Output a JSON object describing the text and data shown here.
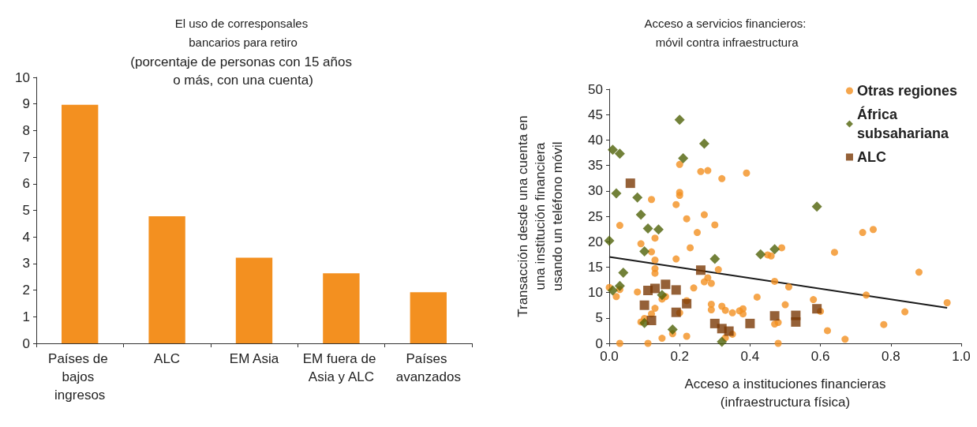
{
  "chart_data": [
    {
      "type": "bar",
      "title": "El uso de corresponsales bancarios para retiro",
      "subtitle": "(porcentaje de personas con 15 años o más, con una cuenta)",
      "categories": [
        "Países de bajos ingresos",
        "ALC",
        "EM Asia",
        "EM fuera de Asia y ALC",
        "Países avanzados"
      ],
      "values": [
        8.97,
        4.78,
        3.22,
        2.63,
        1.92
      ],
      "color": "#f39020",
      "ylim": [
        0,
        10
      ],
      "yticks": [
        0,
        1,
        2,
        3,
        4,
        5,
        6,
        7,
        8,
        9,
        10
      ],
      "grid": false
    },
    {
      "type": "scatter",
      "title": "Acceso a servicios financieros: móvil contra infraestructura",
      "xlabel": "Acceso a instituciones financieras (infraestructura física)",
      "ylabel": "Transacción desde una cuenta en una institución financiera usando un teléfono móvil",
      "xlim": [
        0,
        1
      ],
      "xticks": [
        {
          "value": 0,
          "label": "0.0"
        },
        {
          "value": 0.2,
          "label": "0.2"
        },
        {
          "value": 0.4,
          "label": "0.4"
        },
        {
          "value": 0.6,
          "label": "0.6"
        },
        {
          "value": 0.8,
          "label": "0.8"
        },
        {
          "value": 1,
          "label": "1.0"
        }
      ],
      "ylim": [
        0,
        50
      ],
      "yticks": [
        0,
        5,
        10,
        15,
        20,
        25,
        30,
        35,
        40,
        45,
        50
      ],
      "grid": false,
      "legend": "top right",
      "series": [
        {
          "name": "Otras regiones",
          "color": "#f39020",
          "marker": "circle",
          "x": [
            0.03,
            0.11,
            0.2,
            0.2,
            0.2,
            0.19,
            0.12,
            0.03,
            0.22,
            0.25,
            0.09,
            0.13,
            0.12,
            0.23,
            0.13,
            0.19,
            0.13,
            0.13,
            0.0,
            0.03,
            0.02,
            0.08,
            0.24,
            0.15,
            0.16,
            0.22,
            0.13,
            0.12,
            0.1,
            0.09,
            0.2,
            0.18,
            0.15,
            0.22,
            0.26,
            0.28,
            0.32,
            0.39,
            0.27,
            0.3,
            0.31,
            0.28,
            0.27,
            0.29,
            0.29,
            0.29,
            0.32,
            0.33,
            0.35,
            0.37,
            0.38,
            0.38,
            0.42,
            0.45,
            0.46,
            0.49,
            0.47,
            0.51,
            0.5,
            0.47,
            0.48,
            0.48,
            0.33,
            0.35,
            0.72,
            0.75,
            0.64,
            0.88,
            0.73,
            0.58,
            0.6,
            0.96,
            0.84,
            0.78,
            0.62,
            0.67
          ],
          "values": [
            0.0,
            0.0,
            35.2,
            29.7,
            29.1,
            27.3,
            28.3,
            23.2,
            24.5,
            21.8,
            19.6,
            20.7,
            18.0,
            18.8,
            16.4,
            16.6,
            14.7,
            13.8,
            11.0,
            10.6,
            9.2,
            10.1,
            10.9,
            8.7,
            9.2,
            8.4,
            6.9,
            5.8,
            4.9,
            4.2,
            6.0,
            1.9,
            1.0,
            1.4,
            33.8,
            34.0,
            32.4,
            33.5,
            25.3,
            23.3,
            14.5,
            12.9,
            12.1,
            11.8,
            7.7,
            6.6,
            7.3,
            6.5,
            6.0,
            6.4,
            6.8,
            5.8,
            9.1,
            17.4,
            17.2,
            18.8,
            12.2,
            11.1,
            7.6,
            3.8,
            4.1,
            0.0,
            1.1,
            1.8,
            21.8,
            22.4,
            17.9,
            14.0,
            9.5,
            8.6,
            6.3,
            8.0,
            6.2,
            3.7,
            2.5,
            0.8
          ]
        },
        {
          "name": "África subsahariana",
          "color": "#4f6208",
          "marker": "diamond",
          "x": [
            0.01,
            0.03,
            0.2,
            0.21,
            0.02,
            0.08,
            0.09,
            0.11,
            0.14,
            0.0,
            0.1,
            0.04,
            0.03,
            0.01,
            0.15,
            0.1,
            0.18,
            0.27,
            0.3,
            0.43,
            0.47,
            0.32,
            0.59
          ],
          "values": [
            38.1,
            37.3,
            44.0,
            36.4,
            29.5,
            28.7,
            25.3,
            22.6,
            22.4,
            20.2,
            18.1,
            13.9,
            11.3,
            10.4,
            9.5,
            4.0,
            2.7,
            39.3,
            16.6,
            17.5,
            18.5,
            0.3,
            26.9
          ]
        },
        {
          "name": "ALC",
          "color": "#7b3a06",
          "marker": "square",
          "x": [
            0.06,
            0.13,
            0.11,
            0.16,
            0.19,
            0.1,
            0.22,
            0.12,
            0.19,
            0.26,
            0.3,
            0.32,
            0.34,
            0.4,
            0.47,
            0.53,
            0.53,
            0.59
          ],
          "values": [
            31.5,
            10.8,
            10.4,
            11.6,
            10.5,
            7.5,
            7.8,
            4.5,
            6.1,
            14.4,
            3.9,
            2.9,
            2.4,
            3.9,
            5.4,
            5.5,
            4.2,
            6.8
          ]
        },
        {
          "type": "line",
          "color": "#1a1a1a",
          "marker": "none",
          "line_style": "solid",
          "x": [
            0,
            0.96
          ],
          "values": [
            17,
            7
          ]
        }
      ]
    }
  ]
}
